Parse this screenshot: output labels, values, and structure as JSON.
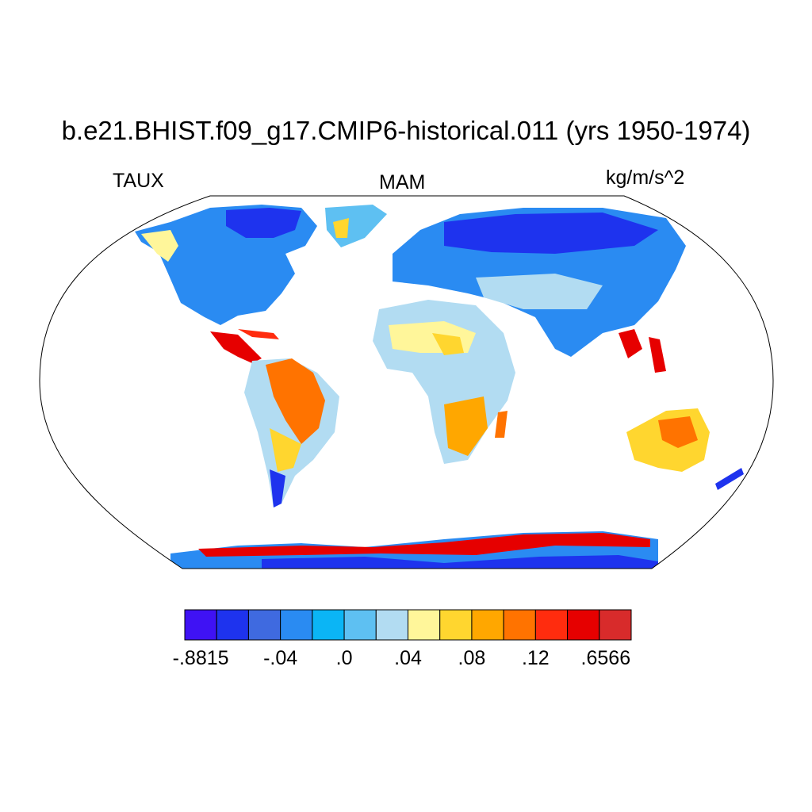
{
  "title": "b.e21.BHIST.f09_g17.CMIP6-historical.011 (yrs 1950-1974)",
  "left_label": "TAUX",
  "center_label": "MAM",
  "right_label": "kg/m/s^2",
  "colorbar": {
    "colors": [
      "#3f12f4",
      "#1e33ee",
      "#3f6ae0",
      "#2a8bf2",
      "#0bb5f5",
      "#5ec0f2",
      "#b2dcf2",
      "#fff69a",
      "#ffd62f",
      "#ffa700",
      "#ff7300",
      "#ff2c0e",
      "#e60000",
      "#d82b2b"
    ],
    "labels": [
      ".8815 neg",
      "",
      ".04 neg",
      "",
      ".0",
      "",
      ".04",
      "",
      ".08",
      "",
      ".12",
      "",
      "",
      ".6566"
    ],
    "label_text": [
      "-.8815",
      "-.04",
      ".0",
      ".04",
      ".08",
      ".12",
      ".6566"
    ]
  },
  "map": {
    "projection": "robinson",
    "field": "TAUX"
  }
}
